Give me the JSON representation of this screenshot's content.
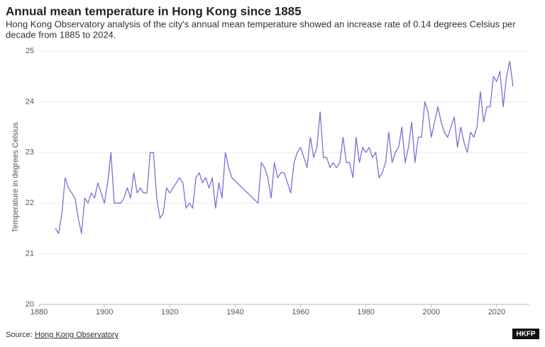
{
  "chart_data": {
    "type": "line",
    "title": "Annual mean temperature in Hong Kong since 1885",
    "subtitle": [
      "Hong Kong Observatory analysis of the city's annual mean temperature showed an increase rate of 0.14 degrees Celsius per",
      "decade from 1885 to 2024."
    ],
    "y_label": "Temperature in degrees Celsius",
    "source_label": "Source:",
    "source": "Hong Kong Observatory",
    "logo": "HKFP",
    "color": "#7b6fd6",
    "grid": true,
    "xlim": [
      1880,
      2030
    ],
    "xticks": [
      1880,
      1900,
      1920,
      1940,
      1960,
      1980,
      2000,
      2020
    ],
    "ylim": [
      20,
      25
    ],
    "yticks": [
      20,
      21,
      22,
      23,
      24,
      25
    ],
    "x": [
      1885,
      1886,
      1887,
      1888,
      1889,
      1890,
      1891,
      1892,
      1893,
      1894,
      1895,
      1896,
      1897,
      1898,
      1899,
      1900,
      1901,
      1902,
      1903,
      1904,
      1905,
      1906,
      1907,
      1908,
      1909,
      1910,
      1911,
      1912,
      1913,
      1914,
      1915,
      1916,
      1917,
      1918,
      1919,
      1920,
      1921,
      1922,
      1923,
      1924,
      1925,
      1926,
      1927,
      1928,
      1929,
      1930,
      1931,
      1932,
      1933,
      1934,
      1935,
      1936,
      1937,
      1938,
      1939,
      1947,
      1948,
      1949,
      1950,
      1951,
      1952,
      1953,
      1954,
      1955,
      1956,
      1957,
      1958,
      1959,
      1960,
      1961,
      1962,
      1963,
      1964,
      1965,
      1966,
      1967,
      1968,
      1969,
      1970,
      1971,
      1972,
      1973,
      1974,
      1975,
      1976,
      1977,
      1978,
      1979,
      1980,
      1981,
      1982,
      1983,
      1984,
      1985,
      1986,
      1987,
      1988,
      1989,
      1990,
      1991,
      1992,
      1993,
      1994,
      1995,
      1996,
      1997,
      1998,
      1999,
      2000,
      2001,
      2002,
      2003,
      2004,
      2005,
      2006,
      2007,
      2008,
      2009,
      2010,
      2011,
      2012,
      2013,
      2014,
      2015,
      2016,
      2017,
      2018,
      2019,
      2020,
      2021,
      2022,
      2023,
      2024,
      2025
    ],
    "values": [
      21.5,
      21.4,
      21.8,
      22.5,
      22.3,
      22.2,
      22.1,
      21.7,
      21.4,
      22.1,
      22.0,
      22.2,
      22.1,
      22.4,
      22.2,
      22.0,
      22.4,
      23.0,
      22.0,
      22.0,
      22.0,
      22.1,
      22.3,
      22.1,
      22.6,
      22.2,
      22.3,
      22.2,
      22.2,
      23.0,
      23.0,
      22.1,
      21.7,
      21.8,
      22.3,
      22.2,
      22.3,
      22.4,
      22.5,
      22.4,
      21.9,
      22.0,
      21.9,
      22.5,
      22.6,
      22.4,
      22.5,
      22.3,
      22.5,
      21.9,
      22.4,
      22.1,
      23.0,
      22.7,
      22.5,
      22.0,
      22.8,
      22.7,
      22.5,
      22.1,
      22.8,
      22.5,
      22.6,
      22.6,
      22.4,
      22.2,
      22.8,
      23.0,
      23.1,
      22.9,
      22.7,
      23.3,
      22.9,
      23.1,
      23.8,
      22.9,
      22.9,
      22.7,
      22.8,
      22.7,
      22.8,
      23.3,
      22.8,
      22.8,
      22.5,
      23.3,
      22.8,
      23.1,
      23.0,
      23.1,
      22.9,
      23.0,
      22.5,
      22.6,
      22.8,
      23.4,
      22.8,
      23.0,
      23.1,
      23.5,
      22.8,
      23.1,
      23.6,
      22.8,
      23.3,
      23.3,
      24.0,
      23.8,
      23.3,
      23.6,
      23.9,
      23.6,
      23.4,
      23.3,
      23.5,
      23.7,
      23.1,
      23.5,
      23.2,
      23.0,
      23.4,
      23.3,
      23.5,
      24.2,
      23.6,
      23.9,
      23.9,
      24.5,
      24.4,
      24.6,
      23.9,
      24.5,
      24.8,
      24.3
    ]
  }
}
